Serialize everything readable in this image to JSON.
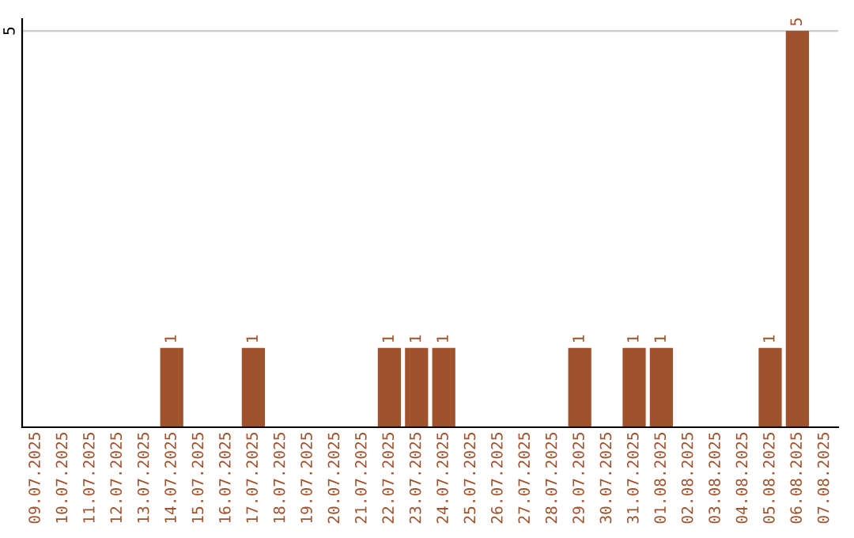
{
  "chart_data": {
    "type": "bar",
    "categories": [
      "09.07.2025",
      "10.07.2025",
      "11.07.2025",
      "12.07.2025",
      "13.07.2025",
      "14.07.2025",
      "15.07.2025",
      "16.07.2025",
      "17.07.2025",
      "18.07.2025",
      "19.07.2025",
      "20.07.2025",
      "21.07.2025",
      "22.07.2025",
      "23.07.2025",
      "24.07.2025",
      "25.07.2025",
      "26.07.2025",
      "27.07.2025",
      "28.07.2025",
      "29.07.2025",
      "30.07.2025",
      "31.07.2025",
      "01.08.2025",
      "02.08.2025",
      "03.08.2025",
      "04.08.2025",
      "05.08.2025",
      "06.08.2025",
      "07.08.2025"
    ],
    "values": [
      0,
      0,
      0,
      0,
      0,
      1,
      0,
      0,
      1,
      0,
      0,
      0,
      0,
      1,
      1,
      1,
      0,
      0,
      0,
      0,
      1,
      0,
      1,
      1,
      0,
      0,
      0,
      1,
      5,
      0
    ],
    "value_labels": [
      null,
      null,
      null,
      null,
      null,
      "1",
      null,
      null,
      "1",
      null,
      null,
      null,
      null,
      "1",
      "1",
      "1",
      null,
      null,
      null,
      null,
      "1",
      null,
      "1",
      "1",
      null,
      null,
      null,
      "1",
      "5",
      null
    ],
    "color": "#a0522d",
    "ylim": [
      0,
      5.15
    ],
    "yticks": [
      5
    ],
    "grid": "y"
  }
}
